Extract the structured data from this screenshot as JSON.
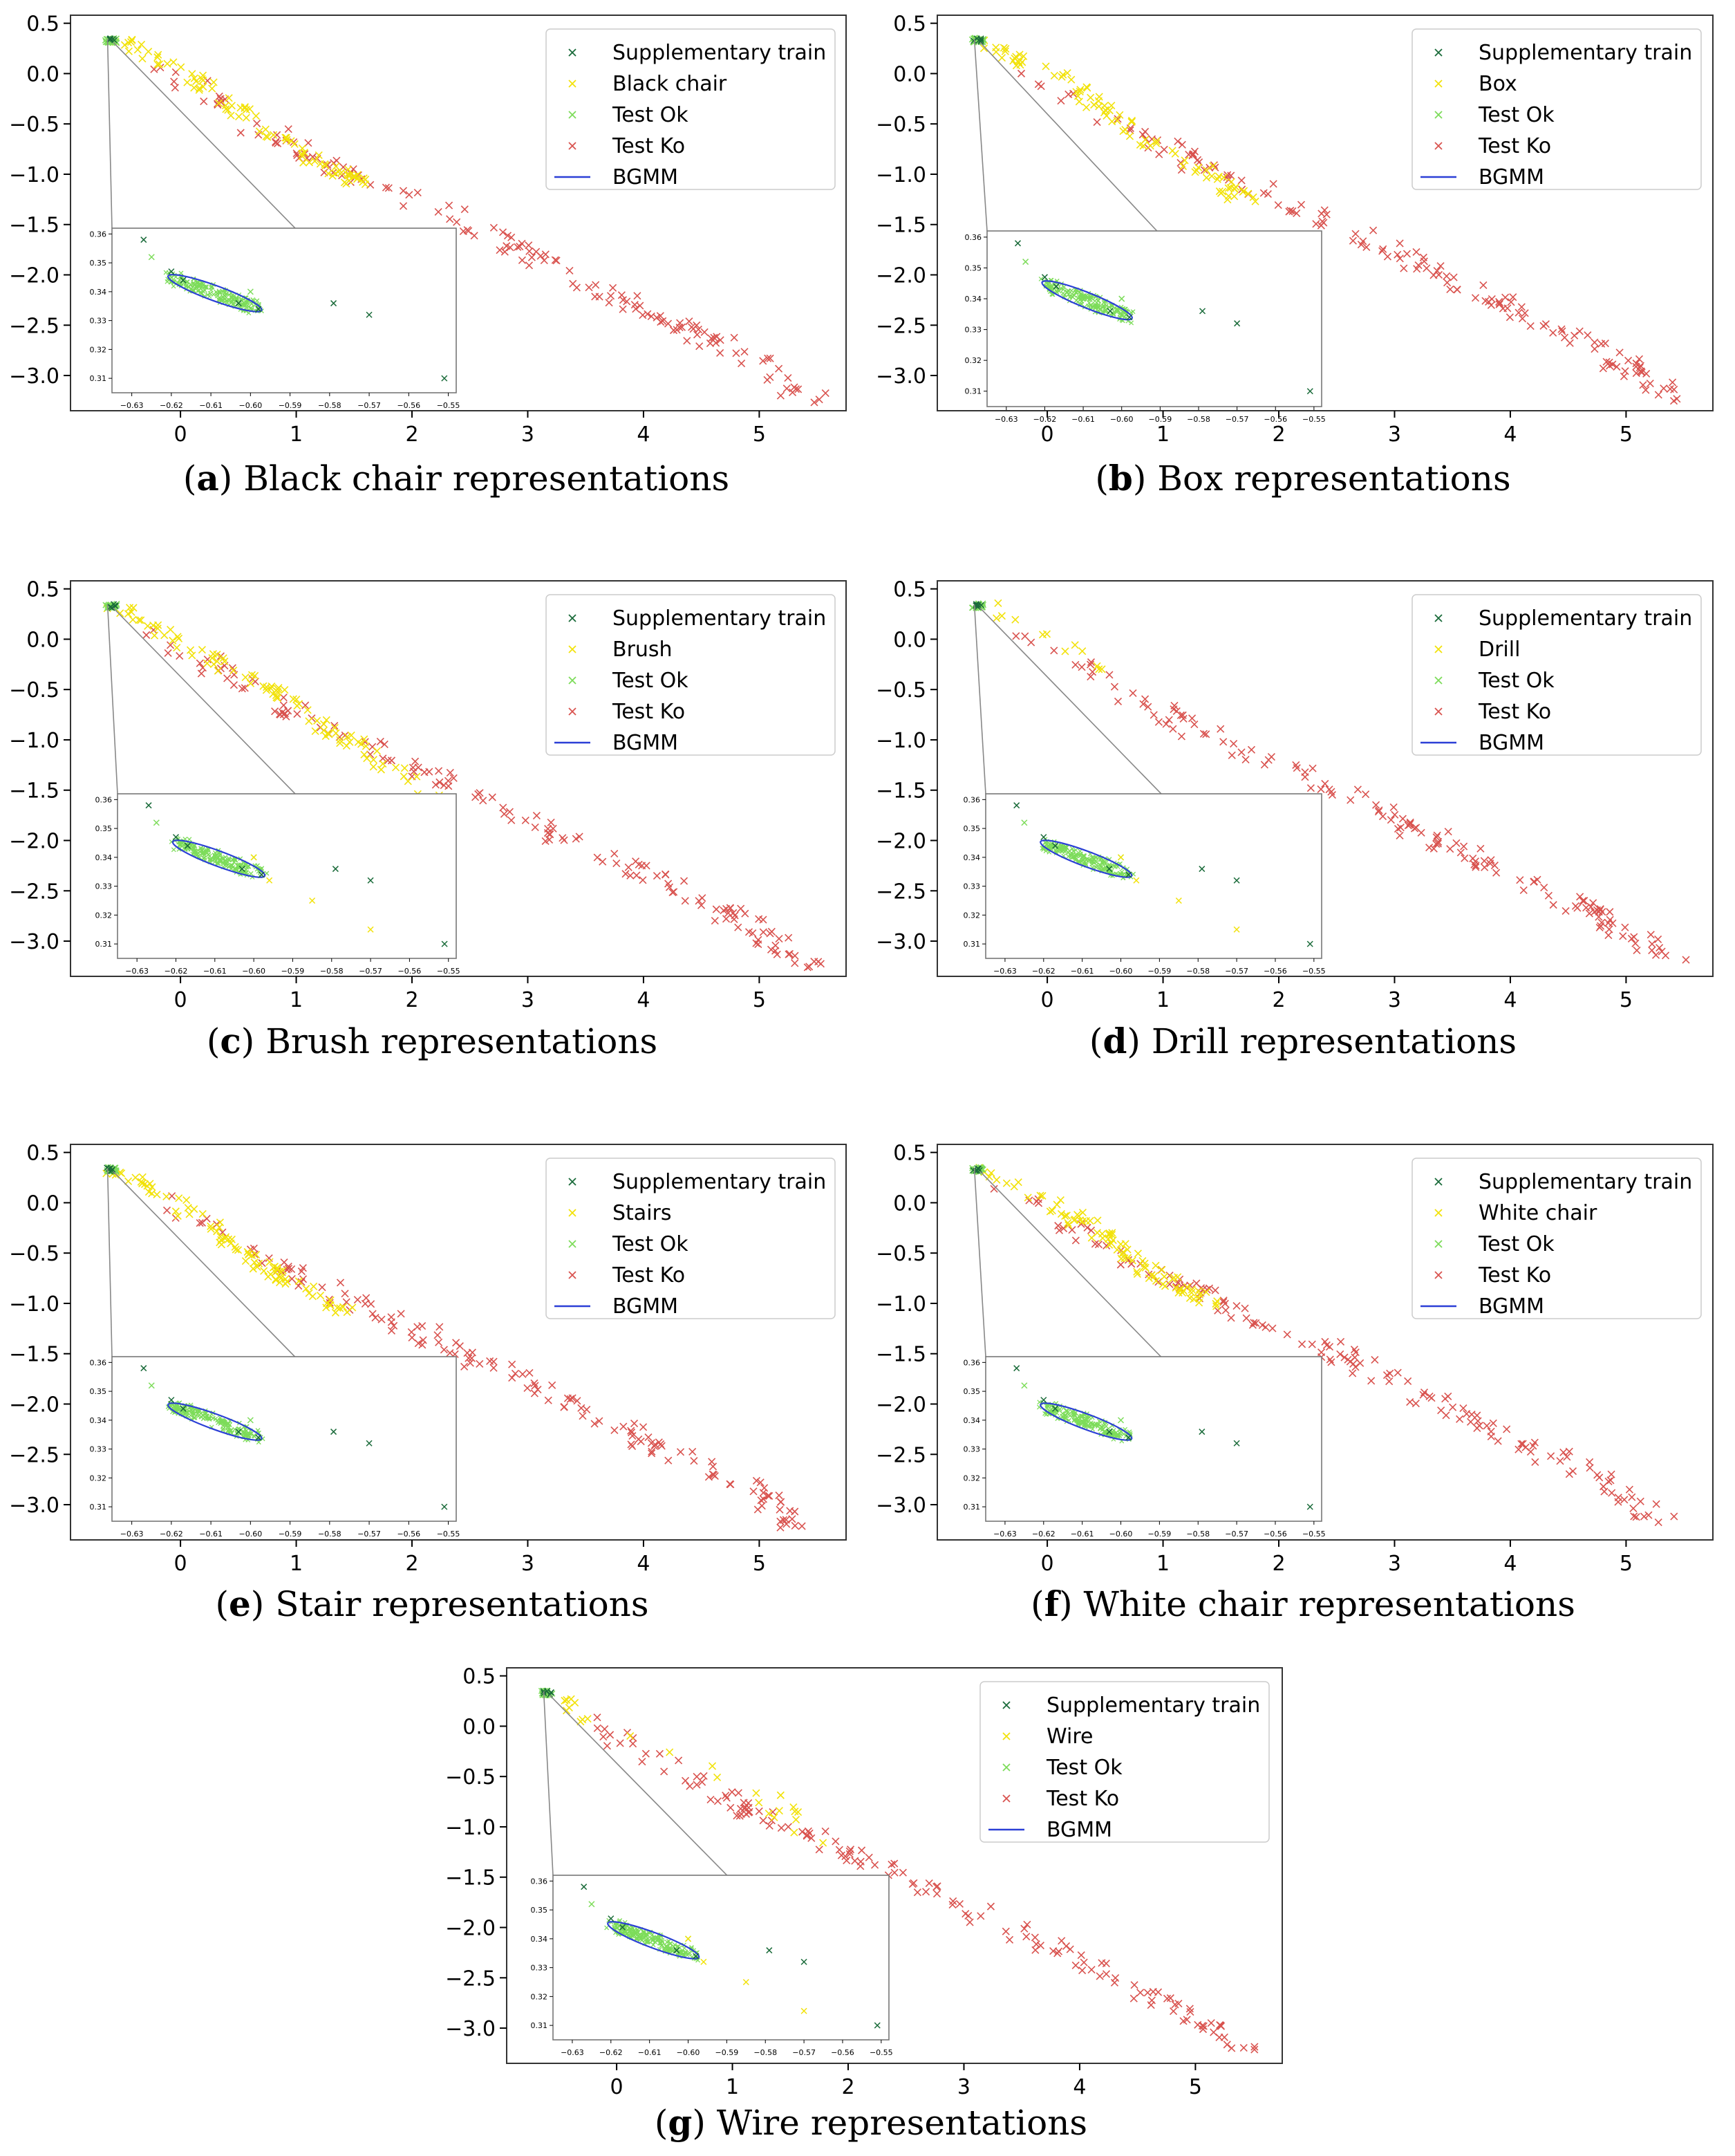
{
  "x_ticks": [
    "0",
    "1",
    "2",
    "3",
    "4",
    "5"
  ],
  "y_ticks": [
    "0.5",
    "0.0",
    "−0.5",
    "−1.0",
    "−1.5",
    "−2.0",
    "−2.5",
    "−3.0"
  ],
  "inset_x_ticks": [
    "−0.63",
    "−0.62",
    "−0.61",
    "−0.60",
    "−0.59",
    "−0.58",
    "−0.57",
    "−0.56",
    "−0.55"
  ],
  "inset_y_ticks": [
    "0.36",
    "0.35",
    "0.34",
    "0.33",
    "0.32",
    "0.31"
  ],
  "colors": {
    "supp": "#1a6b3a",
    "test_ok": "#7ddc5a",
    "test_ko": "#d9534f",
    "bgmm": "#2b3fd6"
  },
  "chart_data": [
    {
      "id": "a",
      "type": "scatter",
      "label": "a",
      "caption": "Black chair representations",
      "series": [
        {
          "name": "Supplementary train",
          "color": "#1a6b3a",
          "marker": "x"
        },
        {
          "name": "Black chair",
          "color": "#f2e20a",
          "marker": "x",
          "path": [
            [
              -0.55,
              0.33
            ],
            [
              0.0,
              0.05
            ],
            [
              0.6,
              -0.45
            ],
            [
              1.2,
              -0.9
            ],
            [
              1.6,
              -1.1
            ]
          ]
        },
        {
          "name": "Test Ok",
          "color": "#7ddc5a",
          "marker": "x"
        },
        {
          "name": "Test Ko",
          "color": "#d9534f",
          "marker": "x"
        },
        {
          "name": "BGMM",
          "color": "#2b3fd6",
          "marker": "line"
        }
      ],
      "xlim": [
        -0.95,
        5.75
      ],
      "ylim": [
        -3.35,
        0.58
      ]
    },
    {
      "id": "b",
      "type": "scatter",
      "label": "b",
      "caption": "Box representations",
      "series": [
        {
          "name": "Supplementary train",
          "color": "#1a6b3a",
          "marker": "x"
        },
        {
          "name": "Box",
          "color": "#f2e20a",
          "marker": "x",
          "path": [
            [
              -0.55,
              0.33
            ],
            [
              0.2,
              -0.1
            ],
            [
              0.8,
              -0.6
            ],
            [
              1.4,
              -1.0
            ],
            [
              1.7,
              -1.25
            ]
          ]
        },
        {
          "name": "Test Ok",
          "color": "#7ddc5a",
          "marker": "x"
        },
        {
          "name": "Test Ko",
          "color": "#d9534f",
          "marker": "x"
        },
        {
          "name": "BGMM",
          "color": "#2b3fd6",
          "marker": "line"
        }
      ],
      "xlim": [
        -0.95,
        5.75
      ],
      "ylim": [
        -3.35,
        0.58
      ]
    },
    {
      "id": "c",
      "type": "scatter",
      "label": "c",
      "caption": "Brush representations",
      "series": [
        {
          "name": "Supplementary train",
          "color": "#1a6b3a",
          "marker": "x"
        },
        {
          "name": "Brush",
          "color": "#f2e20a",
          "marker": "x",
          "path": [
            [
              -0.55,
              0.33
            ],
            [
              0.3,
              -0.2
            ],
            [
              0.9,
              -0.6
            ],
            [
              1.5,
              -1.05
            ],
            [
              2.2,
              -1.55
            ]
          ]
        },
        {
          "name": "Test Ok",
          "color": "#7ddc5a",
          "marker": "x"
        },
        {
          "name": "Test Ko",
          "color": "#d9534f",
          "marker": "x"
        },
        {
          "name": "BGMM",
          "color": "#2b3fd6",
          "marker": "line"
        }
      ],
      "xlim": [
        -0.95,
        5.75
      ],
      "ylim": [
        -3.35,
        0.58
      ]
    },
    {
      "id": "d",
      "type": "scatter",
      "label": "d",
      "caption": "Drill representations",
      "series": [
        {
          "name": "Supplementary train",
          "color": "#1a6b3a",
          "marker": "x"
        },
        {
          "name": "Drill",
          "color": "#f2e20a",
          "marker": "x",
          "path": [
            [
              -0.55,
              0.33
            ],
            [
              -0.1,
              0.05
            ],
            [
              0.2,
              -0.1
            ],
            [
              0.6,
              -0.35
            ]
          ]
        },
        {
          "name": "Test Ok",
          "color": "#7ddc5a",
          "marker": "x"
        },
        {
          "name": "Test Ko",
          "color": "#d9534f",
          "marker": "x"
        },
        {
          "name": "BGMM",
          "color": "#2b3fd6",
          "marker": "line"
        }
      ],
      "xlim": [
        -0.95,
        5.75
      ],
      "ylim": [
        -3.35,
        0.58
      ]
    },
    {
      "id": "e",
      "type": "scatter",
      "label": "e",
      "caption": "Stair representations",
      "series": [
        {
          "name": "Supplementary train",
          "color": "#1a6b3a",
          "marker": "x"
        },
        {
          "name": "Stairs",
          "color": "#f2e20a",
          "marker": "x",
          "path": [
            [
              -0.55,
              0.33
            ],
            [
              0.2,
              -0.2
            ],
            [
              0.8,
              -0.7
            ],
            [
              1.4,
              -1.1
            ]
          ]
        },
        {
          "name": "Test Ok",
          "color": "#7ddc5a",
          "marker": "x"
        },
        {
          "name": "Test Ko",
          "color": "#d9534f",
          "marker": "x"
        },
        {
          "name": "BGMM",
          "color": "#2b3fd6",
          "marker": "line"
        }
      ],
      "xlim": [
        -0.95,
        5.75
      ],
      "ylim": [
        -3.35,
        0.58
      ]
    },
    {
      "id": "f",
      "type": "scatter",
      "label": "f",
      "caption": "White chair representations",
      "series": [
        {
          "name": "Supplementary train",
          "color": "#1a6b3a",
          "marker": "x"
        },
        {
          "name": "White chair",
          "color": "#f2e20a",
          "marker": "x",
          "path": [
            [
              -0.55,
              0.33
            ],
            [
              0.1,
              -0.05
            ],
            [
              0.6,
              -0.4
            ],
            [
              0.9,
              -0.7
            ],
            [
              1.4,
              -1.0
            ]
          ]
        },
        {
          "name": "Test Ok",
          "color": "#7ddc5a",
          "marker": "x"
        },
        {
          "name": "Test Ko",
          "color": "#d9534f",
          "marker": "x"
        },
        {
          "name": "BGMM",
          "color": "#2b3fd6",
          "marker": "line"
        }
      ],
      "xlim": [
        -0.95,
        5.75
      ],
      "ylim": [
        -3.35,
        0.58
      ]
    },
    {
      "id": "g",
      "type": "scatter",
      "label": "g",
      "caption": "Wire representations",
      "series": [
        {
          "name": "Supplementary train",
          "color": "#1a6b3a",
          "marker": "x"
        },
        {
          "name": "Wire",
          "color": "#f2e20a",
          "marker": "x",
          "path": [
            [
              -0.55,
              0.33
            ],
            [
              -0.2,
              0.0
            ],
            [
              1.3,
              -0.7
            ],
            [
              1.8,
              -1.2
            ]
          ]
        },
        {
          "name": "Test Ok",
          "color": "#7ddc5a",
          "marker": "x"
        },
        {
          "name": "Test Ko",
          "color": "#d9534f",
          "marker": "x"
        },
        {
          "name": "BGMM",
          "color": "#2b3fd6",
          "marker": "line"
        }
      ],
      "xlim": [
        -0.95,
        5.75
      ],
      "ylim": [
        -3.35,
        0.58
      ]
    }
  ],
  "test_ko_path": [
    [
      -0.3,
      0.1
    ],
    [
      0.8,
      -0.6
    ],
    [
      1.4,
      -0.95
    ],
    [
      2.5,
      -1.5
    ],
    [
      3.2,
      -1.9
    ],
    [
      4.0,
      -2.35
    ],
    [
      4.8,
      -2.75
    ],
    [
      5.45,
      -3.25
    ]
  ],
  "inset": {
    "xlim": [
      -0.635,
      -0.548
    ],
    "ylim": [
      0.305,
      0.362
    ]
  }
}
